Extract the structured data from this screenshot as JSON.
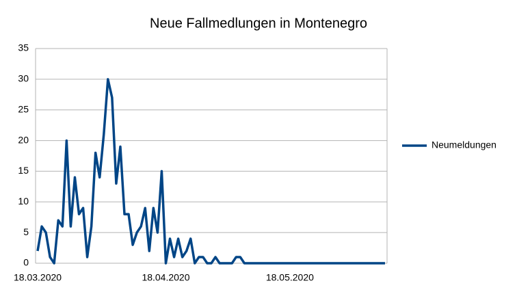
{
  "chart_data": {
    "type": "line",
    "title": "Neue Fallmedlungen in Montenegro",
    "categories": [
      "18.03.2020",
      null,
      null,
      null,
      null,
      null,
      null,
      null,
      null,
      null,
      null,
      null,
      null,
      null,
      null,
      null,
      null,
      null,
      null,
      null,
      null,
      null,
      null,
      null,
      null,
      null,
      null,
      null,
      null,
      null,
      null,
      "18.04.2020",
      null,
      null,
      null,
      null,
      null,
      null,
      null,
      null,
      null,
      null,
      null,
      null,
      null,
      null,
      null,
      null,
      null,
      null,
      null,
      null,
      null,
      null,
      null,
      null,
      null,
      null,
      null,
      null,
      null,
      "18.05.2020",
      null,
      null,
      null,
      null,
      null,
      null,
      null,
      null,
      null,
      null,
      null,
      null,
      null,
      null,
      null,
      null,
      null,
      null,
      null,
      null,
      null,
      null,
      null
    ],
    "series": [
      {
        "name": "Neumeldungen",
        "color": "#004586",
        "values": [
          2,
          6,
          5,
          1,
          0,
          7,
          6,
          20,
          6,
          14,
          8,
          9,
          1,
          6,
          18,
          14,
          21,
          30,
          27,
          13,
          19,
          8,
          8,
          3,
          5,
          6,
          9,
          2,
          9,
          5,
          15,
          0,
          4,
          1,
          4,
          1,
          2,
          4,
          0,
          1,
          1,
          0,
          0,
          1,
          0,
          0,
          0,
          0,
          1,
          1,
          0,
          0,
          0,
          0,
          0,
          0,
          0,
          0,
          0,
          0,
          0,
          0,
          0,
          0,
          0,
          0,
          0,
          0,
          0,
          0,
          0,
          0,
          0,
          0,
          0,
          0,
          0,
          0,
          0,
          0,
          0,
          0,
          0,
          0,
          0
        ]
      }
    ],
    "ylim": [
      0,
      35
    ],
    "yticks": [
      0,
      5,
      10,
      15,
      20,
      25,
      30,
      35
    ],
    "grid": true,
    "legend": "right"
  }
}
